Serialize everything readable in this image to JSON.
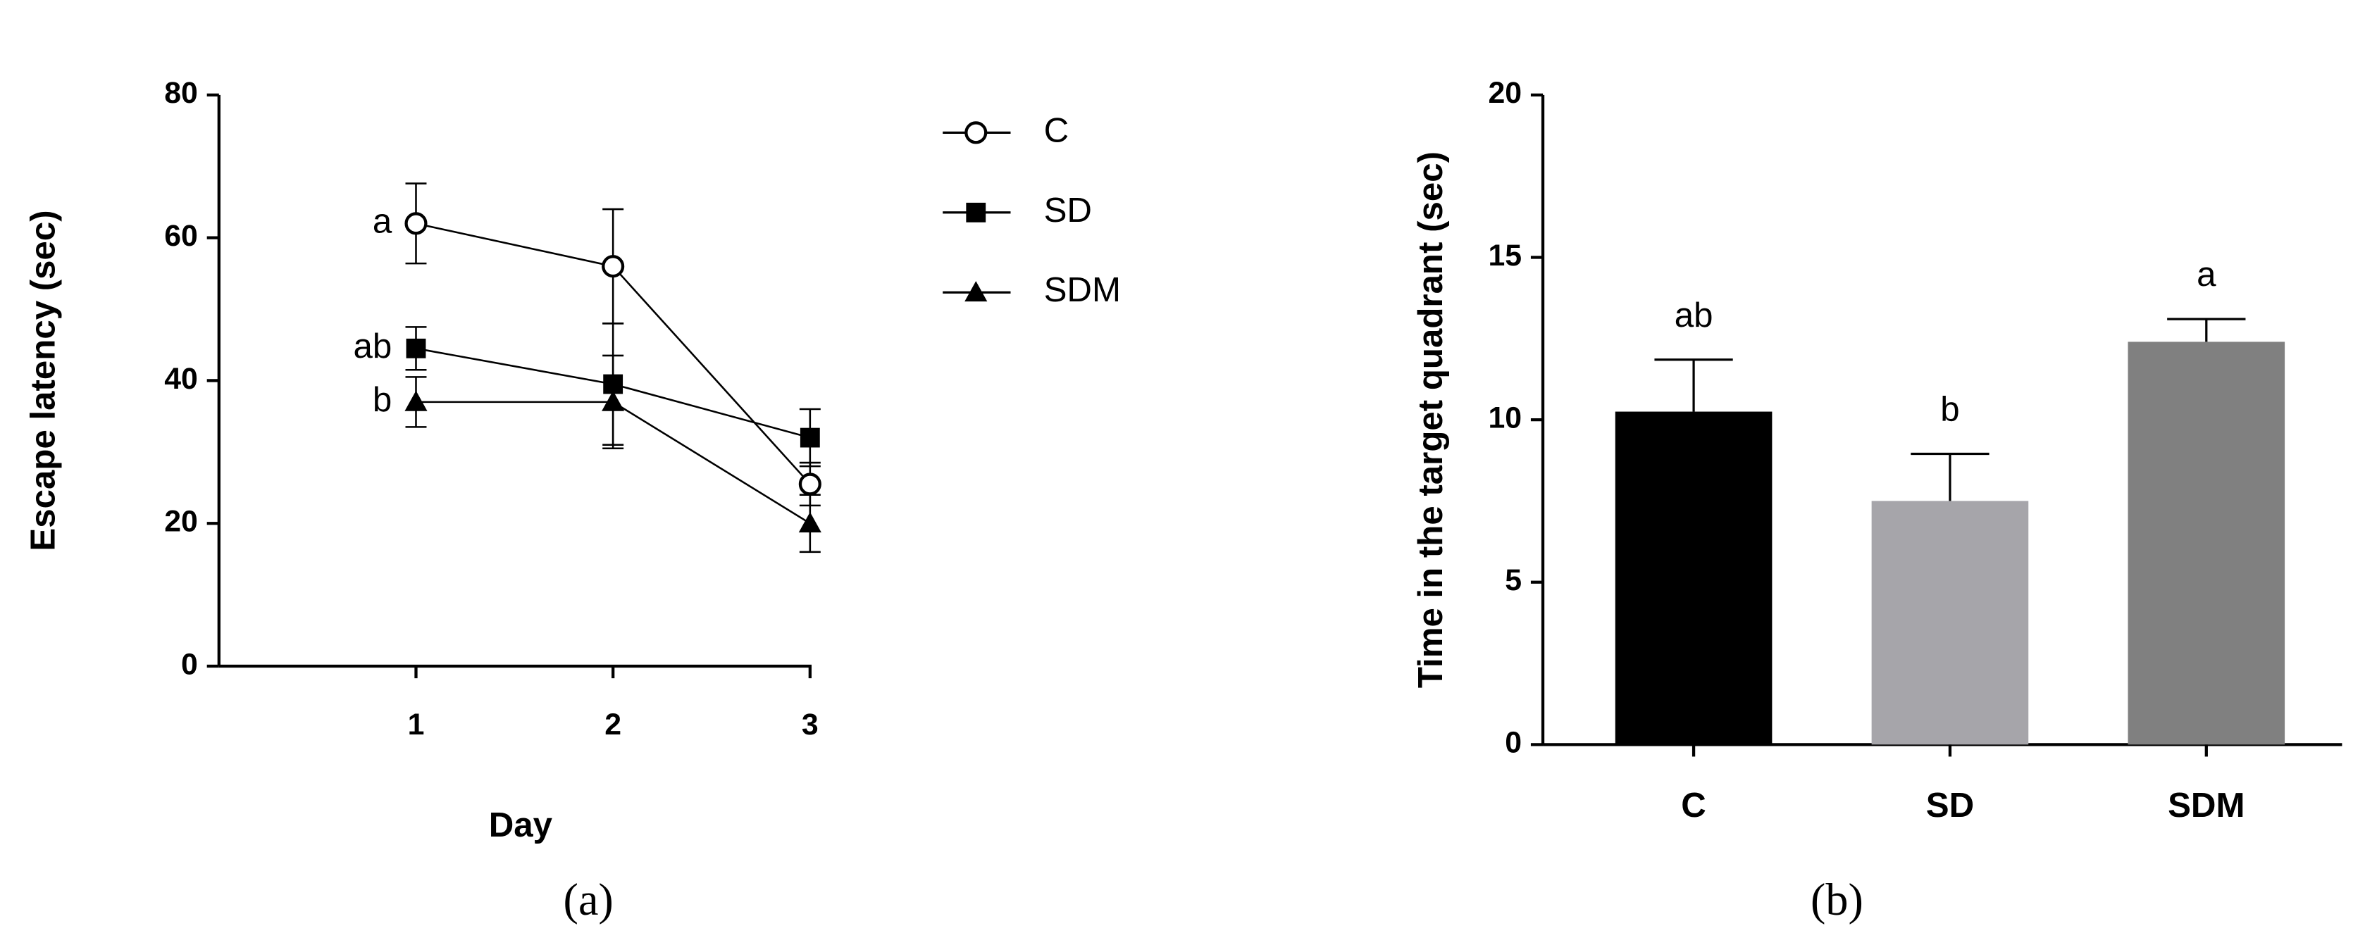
{
  "chart_data": [
    {
      "type": "line",
      "xlabel": "Day",
      "ylabel": "Escape latency (sec)",
      "panel": "(a)",
      "x": [
        1,
        2,
        3
      ],
      "xlim": [
        0,
        3
      ],
      "xticks": [
        1,
        2,
        3
      ],
      "ylim": [
        0,
        80
      ],
      "yticks": [
        0,
        20,
        40,
        60,
        80
      ],
      "series": [
        {
          "name": "C",
          "color": "#000000",
          "marker": "open-circle",
          "values": [
            62,
            56,
            25.5
          ],
          "errors": [
            5.6,
            8,
            3
          ]
        },
        {
          "name": "SD",
          "color": "#000000",
          "marker": "square",
          "values": [
            44.5,
            39.5,
            32
          ],
          "errors": [
            3,
            8.5,
            4
          ]
        },
        {
          "name": "SDM",
          "color": "#000000",
          "marker": "triangle",
          "values": [
            37,
            37,
            20
          ],
          "errors": [
            3.5,
            6.5,
            4
          ]
        }
      ],
      "annotations": [
        "a",
        "ab",
        "b"
      ]
    },
    {
      "type": "bar",
      "ylabel": "Time in the target quadrant (sec)",
      "panel": "(b)",
      "categories": [
        "C",
        "SD",
        "SDM"
      ],
      "values": [
        10.25,
        7.5,
        12.4
      ],
      "errors": [
        1.6,
        1.45,
        0.7
      ],
      "colors": [
        "#000000",
        "#a6a5aa",
        "#808080"
      ],
      "annotations": [
        "ab",
        "b",
        "a"
      ],
      "ylim": [
        0,
        20
      ],
      "yticks": [
        0,
        5,
        10,
        15,
        20
      ]
    }
  ]
}
